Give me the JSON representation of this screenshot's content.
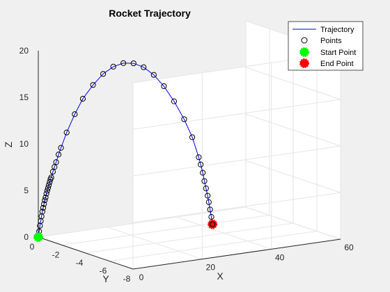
{
  "chart_data": {
    "type": "line3d",
    "title": "Rocket Trajectory",
    "xlabel": "X",
    "ylabel": "Y",
    "zlabel": "Z",
    "xlim": [
      0,
      60
    ],
    "ylim": [
      -8,
      0
    ],
    "zlim": [
      0,
      20
    ],
    "xticks": [
      "0",
      "20",
      "40",
      "60"
    ],
    "yticks": [
      "0",
      "-2",
      "-4",
      "-6",
      "-8"
    ],
    "zticks": [
      "0",
      "5",
      "10",
      "15",
      "20"
    ],
    "grid": true,
    "legend_position": "top-right",
    "legend": [
      "Trajectory",
      "Points",
      "Start Point",
      "End Point"
    ],
    "colors": {
      "trajectory": "#0000ff",
      "points": "#000000",
      "start": "#00ff00",
      "end": "#ff0000",
      "axes_bg": "#ffffff",
      "figure_bg": "#f0f0f0",
      "grid": "#e5e5e5",
      "axis": "#262626"
    },
    "series": [
      {
        "name": "Trajectory",
        "x": [
          0,
          0.2,
          0.4,
          0.6,
          0.8,
          1.0,
          1.2,
          1.4,
          1.6,
          1.8,
          2.0,
          2.2,
          2.4,
          2.6,
          2.8,
          3.0,
          3.2,
          3.6,
          4.0,
          4.4,
          5.0,
          5.6,
          7.0,
          9.0,
          11.0,
          13.5,
          16.0,
          18.5,
          21.0,
          23.5,
          26.0,
          28.5,
          31.0,
          33.5,
          36.0,
          38.0,
          39.6,
          40.1,
          40.6,
          41.0,
          41.4,
          41.8,
          42.1,
          42.4,
          42.7,
          43.0
        ],
        "y": [
          0,
          -0.01,
          -0.02,
          -0.03,
          -0.04,
          -0.05,
          -0.06,
          -0.07,
          -0.08,
          -0.09,
          -0.1,
          -0.11,
          -0.12,
          -0.13,
          -0.14,
          -0.15,
          -0.16,
          -0.18,
          -0.2,
          -0.22,
          -0.25,
          -0.28,
          -0.35,
          -0.45,
          -0.55,
          -0.68,
          -0.8,
          -0.93,
          -1.05,
          -1.18,
          -1.3,
          -1.43,
          -1.55,
          -1.68,
          -1.8,
          -1.9,
          -1.98,
          -2.0,
          -2.03,
          -2.05,
          -2.07,
          -2.09,
          -2.1,
          -2.12,
          -2.14,
          -2.15
        ],
        "z": [
          0,
          0.6,
          1.2,
          1.7,
          2.2,
          2.7,
          3.1,
          3.5,
          3.9,
          4.2,
          4.6,
          4.9,
          5.2,
          5.5,
          5.8,
          6.1,
          6.3,
          6.9,
          7.4,
          7.9,
          8.7,
          9.4,
          11.0,
          12.9,
          14.5,
          15.9,
          17.0,
          17.7,
          18.0,
          17.9,
          17.4,
          16.5,
          15.2,
          13.5,
          11.5,
          9.5,
          7.3,
          6.5,
          5.6,
          4.7,
          3.9,
          3.1,
          2.4,
          1.6,
          0.8,
          0.0
        ]
      }
    ],
    "start_point": {
      "x": 0,
      "y": 0,
      "z": 0
    },
    "end_point": {
      "x": 43.0,
      "y": -2.15,
      "z": 0.0
    }
  }
}
